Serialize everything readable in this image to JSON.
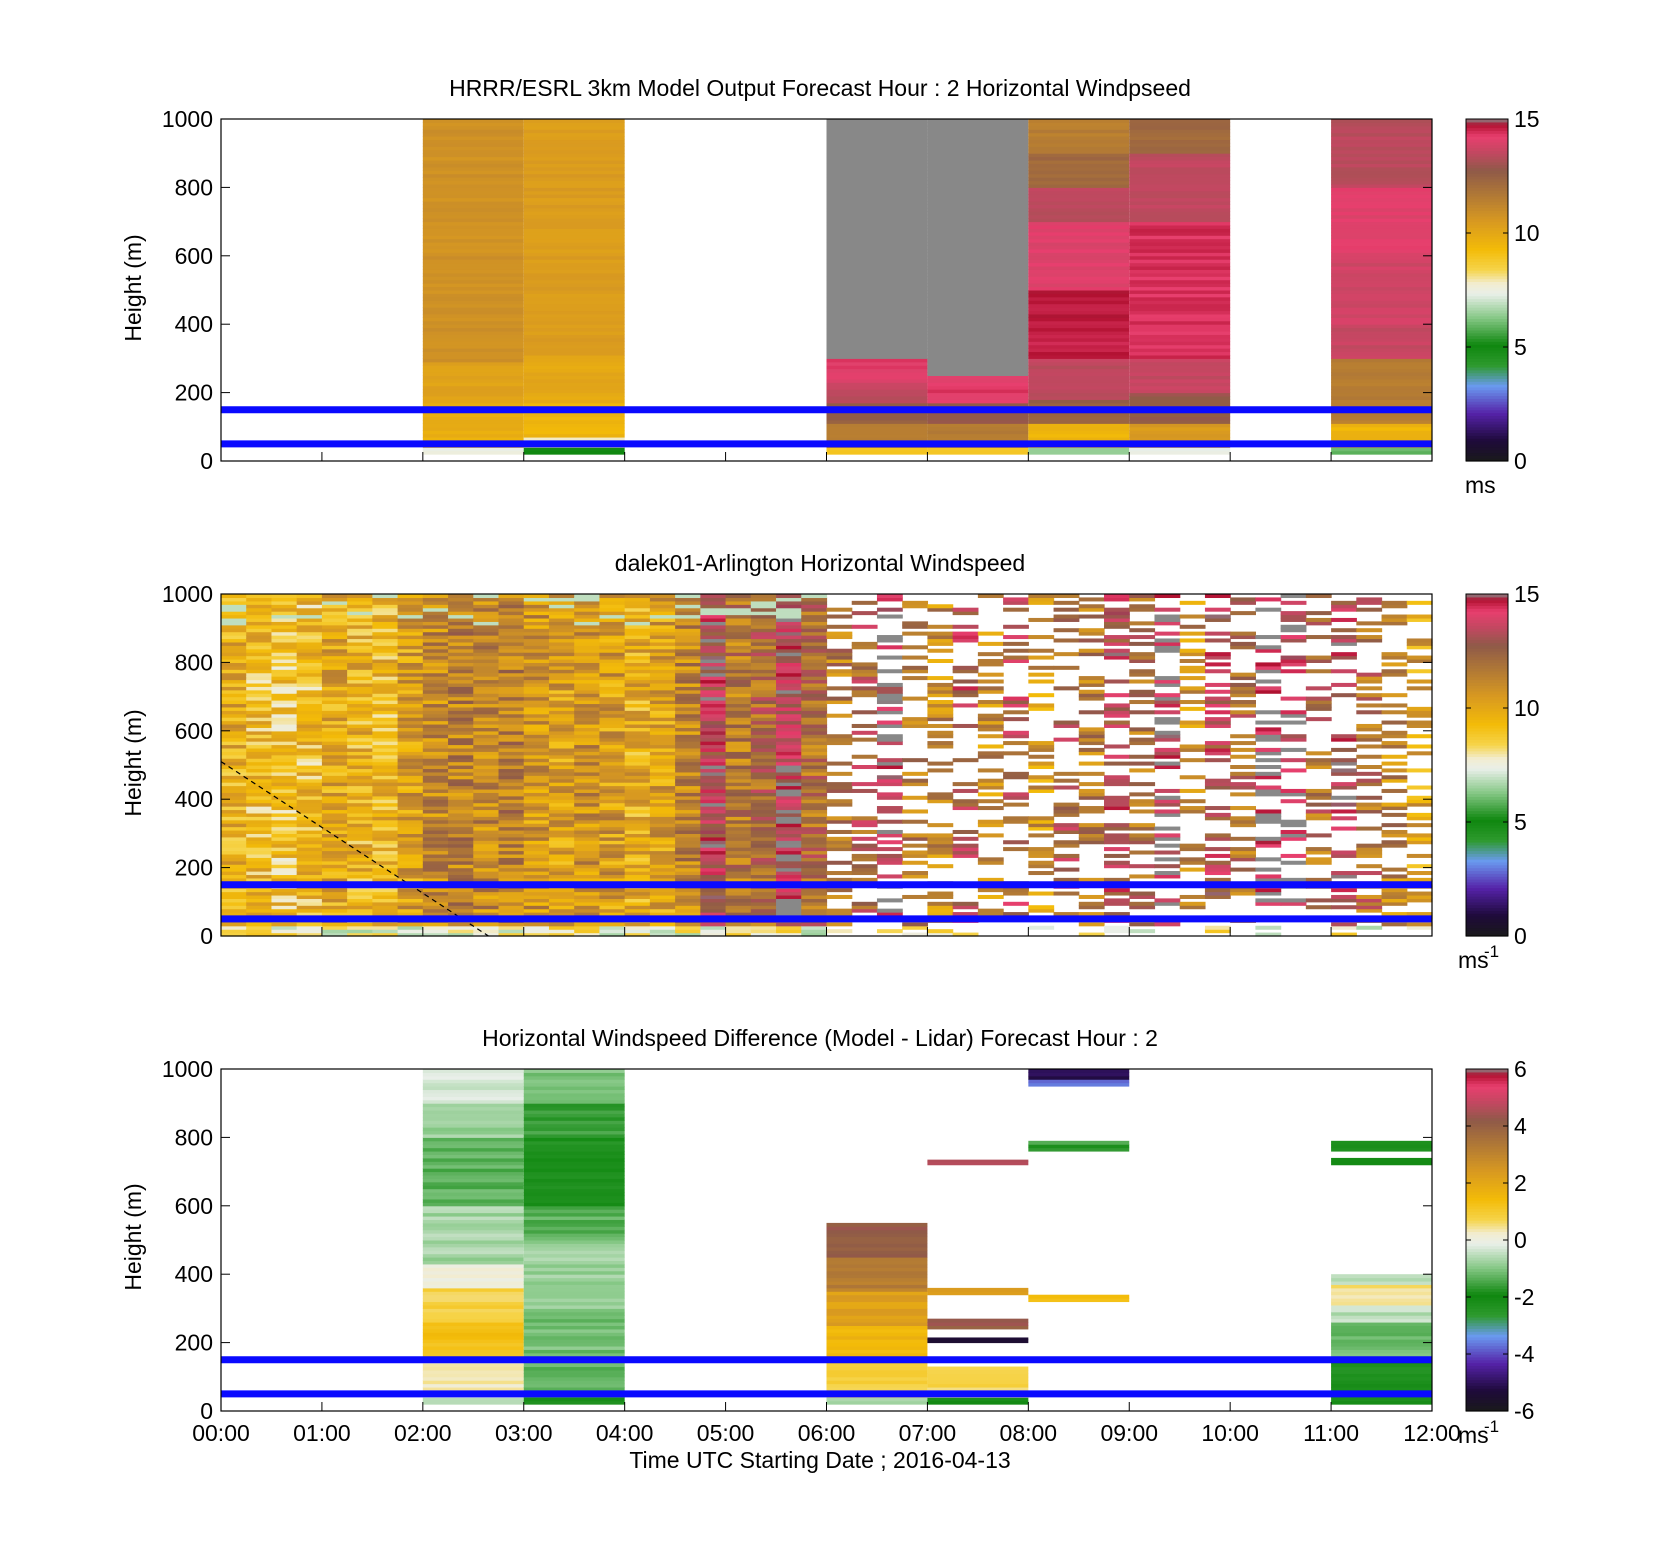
{
  "chart_data": [
    {
      "type": "heatmap",
      "title": "HRRR/ESRL 3km Model Output   Forecast Hour : 2 Horizontal Windpseed",
      "ylabel": "Height (m)",
      "ylim": [
        0,
        1000
      ],
      "yticks": [
        0,
        200,
        400,
        600,
        800,
        1000
      ],
      "xlim": [
        0,
        12
      ],
      "xticks_shown": [
        0,
        3,
        6,
        9
      ],
      "colorbar": {
        "min": 0,
        "max": 15,
        "ticks": [
          "0",
          "5",
          "10",
          "15"
        ],
        "unit": "ms",
        "unit_sup": ""
      },
      "reference_lines_m": [
        50,
        150
      ],
      "columns": [
        {
          "t0": 2,
          "t1": 3,
          "cells": [
            [
              20,
              40,
              7.5
            ],
            [
              40,
              70,
              9.5
            ],
            [
              70,
              170,
              9.8
            ],
            [
              170,
              290,
              10.2
            ],
            [
              290,
              1000,
              10.8
            ]
          ]
        },
        {
          "t0": 3,
          "t1": 4,
          "cells": [
            [
              20,
              40,
              5
            ],
            [
              40,
              70,
              8
            ],
            [
              70,
              170,
              9.5
            ],
            [
              170,
              310,
              10
            ],
            [
              310,
              1000,
              10.4
            ]
          ]
        },
        {
          "t0": 6,
          "t1": 7,
          "cells": [
            [
              20,
              40,
              9
            ],
            [
              40,
              110,
              11.5
            ],
            [
              110,
              170,
              12.5
            ],
            [
              170,
              230,
              13.5
            ],
            [
              230,
              300,
              14.2
            ],
            [
              300,
              1000,
              15.5
            ]
          ]
        },
        {
          "t0": 7,
          "t1": 8,
          "cells": [
            [
              20,
              40,
              9
            ],
            [
              40,
              110,
              11.5
            ],
            [
              110,
              170,
              12.8
            ],
            [
              170,
              250,
              14.3
            ],
            [
              250,
              1000,
              15.5
            ]
          ]
        },
        {
          "t0": 8,
          "t1": 9,
          "cells": [
            [
              20,
              40,
              6.5
            ],
            [
              40,
              110,
              9.5
            ],
            [
              110,
              180,
              12.5
            ],
            [
              180,
              300,
              13.5
            ],
            [
              300,
              500,
              14.6
            ],
            [
              500,
              700,
              14.1
            ],
            [
              700,
              800,
              13.4
            ],
            [
              800,
              900,
              12.2
            ],
            [
              900,
              1000,
              11.5
            ]
          ]
        },
        {
          "t0": 9,
          "t1": 10,
          "cells": [
            [
              20,
              40,
              7.5
            ],
            [
              40,
              110,
              10.5
            ],
            [
              110,
              200,
              12.8
            ],
            [
              200,
              300,
              13.6
            ],
            [
              300,
              700,
              14.4
            ],
            [
              700,
              900,
              13.5
            ],
            [
              900,
              1000,
              12.2
            ]
          ]
        },
        {
          "t0": 11,
          "t1": 12,
          "cells": [
            [
              20,
              40,
              6
            ],
            [
              40,
              110,
              9.5
            ],
            [
              110,
              300,
              11.5
            ],
            [
              300,
              400,
              13.6
            ],
            [
              400,
              600,
              13.8
            ],
            [
              600,
              800,
              14.1
            ],
            [
              800,
              1000,
              13.4
            ]
          ]
        }
      ]
    },
    {
      "type": "heatmap",
      "title": "dalek01-Arlington  Horizontal Windspeed",
      "ylabel": "Height (m)",
      "ylim": [
        0,
        1000
      ],
      "yticks": [
        0,
        200,
        400,
        600,
        800,
        1000
      ],
      "xlim": [
        0,
        12
      ],
      "xticks_shown": [
        0,
        3,
        6,
        9
      ],
      "colorbar": {
        "min": 0,
        "max": 15,
        "ticks": [
          "0",
          "5",
          "10",
          "15"
        ],
        "unit": "ms",
        "unit_sup": "-1"
      },
      "reference_lines_m": [
        50,
        150
      ],
      "dashed_line": {
        "x": [
          0,
          2.65
        ],
        "y": [
          510,
          0
        ]
      },
      "columns": [
        {
          "t0": 0.0,
          "t1": 0.25,
          "base": 9.8
        },
        {
          "t0": 0.25,
          "t1": 0.5,
          "base": 9.3
        },
        {
          "t0": 0.5,
          "t1": 0.75,
          "base": 9.0
        },
        {
          "t0": 0.75,
          "t1": 1.0,
          "base": 9.2
        },
        {
          "t0": 1.0,
          "t1": 1.25,
          "base": 10.0
        },
        {
          "t0": 1.25,
          "t1": 1.5,
          "base": 9.6
        },
        {
          "t0": 1.5,
          "t1": 1.75,
          "base": 9.4
        },
        {
          "t0": 1.75,
          "t1": 2.0,
          "base": 10.3
        },
        {
          "t0": 2.0,
          "t1": 2.25,
          "base": 11.0
        },
        {
          "t0": 2.25,
          "t1": 2.5,
          "base": 11.3
        },
        {
          "t0": 2.5,
          "t1": 2.75,
          "base": 11.0
        },
        {
          "t0": 2.75,
          "t1": 3.0,
          "base": 11.4
        },
        {
          "t0": 3.0,
          "t1": 3.25,
          "base": 10.6
        },
        {
          "t0": 3.25,
          "t1": 3.5,
          "base": 10.2
        },
        {
          "t0": 3.5,
          "t1": 3.75,
          "base": 10.8
        },
        {
          "t0": 3.75,
          "t1": 4.0,
          "base": 10.4
        },
        {
          "t0": 4.0,
          "t1": 4.25,
          "base": 9.8
        },
        {
          "t0": 4.25,
          "t1": 4.5,
          "base": 10.3
        },
        {
          "t0": 4.5,
          "t1": 4.75,
          "base": 11.2
        },
        {
          "t0": 4.75,
          "t1": 5.0,
          "base": 13.8
        },
        {
          "t0": 5.0,
          "t1": 5.25,
          "base": 11.6
        },
        {
          "t0": 5.25,
          "t1": 5.5,
          "base": 12.2
        },
        {
          "t0": 5.5,
          "t1": 5.75,
          "base": 14.2
        },
        {
          "t0": 5.75,
          "t1": 6.0,
          "base": 12.0
        },
        {
          "t0": 6.0,
          "t1": 6.25,
          "base": 11.5
        },
        {
          "t0": 6.25,
          "t1": 6.5,
          "base": 12.5
        },
        {
          "t0": 6.5,
          "t1": 6.75,
          "base": 14.5
        },
        {
          "t0": 6.75,
          "t1": 7.0,
          "base": 11.5
        },
        {
          "t0": 7.0,
          "t1": 7.25,
          "base": 11.0
        },
        {
          "t0": 7.25,
          "t1": 7.5,
          "base": 13.5
        },
        {
          "t0": 7.5,
          "t1": 7.75,
          "base": 11.0
        },
        {
          "t0": 7.75,
          "t1": 8.0,
          "base": 13.0
        },
        {
          "t0": 8.0,
          "t1": 8.25,
          "base": 10.5
        },
        {
          "t0": 8.25,
          "t1": 8.5,
          "base": 12.5
        },
        {
          "t0": 8.5,
          "t1": 8.75,
          "base": 11.5
        },
        {
          "t0": 8.75,
          "t1": 9.0,
          "base": 13.5
        },
        {
          "t0": 9.0,
          "t1": 9.25,
          "base": 12.0
        },
        {
          "t0": 9.25,
          "t1": 9.5,
          "base": 14.5
        },
        {
          "t0": 9.5,
          "t1": 9.75,
          "base": 11.0
        },
        {
          "t0": 9.75,
          "t1": 10.0,
          "base": 13.5
        },
        {
          "t0": 10.0,
          "t1": 10.25,
          "base": 12.0
        },
        {
          "t0": 10.25,
          "t1": 10.5,
          "base": 15.5
        },
        {
          "t0": 10.5,
          "t1": 10.75,
          "base": 14.5
        },
        {
          "t0": 10.75,
          "t1": 11.0,
          "base": 12.0
        },
        {
          "t0": 11.0,
          "t1": 11.25,
          "base": 13.8
        },
        {
          "t0": 11.25,
          "t1": 11.5,
          "base": 12.0
        },
        {
          "t0": 11.5,
          "t1": 11.75,
          "base": 11.2
        },
        {
          "t0": 11.75,
          "t1": 12.0,
          "base": 10.3
        }
      ]
    },
    {
      "type": "heatmap",
      "title": "Horizontal Windspeed Difference (Model - Lidar) Forecast Hour : 2",
      "ylabel": "Height (m)",
      "xlabel": "Time UTC  Starting Date ; 2016-04-13",
      "ylim": [
        0,
        1000
      ],
      "yticks": [
        0,
        200,
        400,
        600,
        800,
        1000
      ],
      "xlim": [
        0,
        12
      ],
      "xticks": [
        "00:00",
        "01:00",
        "02:00",
        "03:00",
        "04:00",
        "05:00",
        "06:00",
        "07:00",
        "08:00",
        "09:00",
        "10:00",
        "11:00",
        "12:00"
      ],
      "colorbar": {
        "min": -6,
        "max": 6,
        "ticks": [
          "-6",
          "-4",
          "-2",
          "0",
          "2",
          "4",
          "6"
        ],
        "unit": "ms",
        "unit_sup": "-1"
      },
      "reference_lines_m": [
        50,
        150
      ],
      "columns": [
        {
          "t0": 2,
          "t1": 3,
          "cells": [
            [
              20,
              40,
              -0.6
            ],
            [
              40,
              160,
              0.3
            ],
            [
              160,
              260,
              1.3
            ],
            [
              260,
              360,
              0.8
            ],
            [
              360,
              430,
              0.2
            ],
            [
              430,
              600,
              -0.7
            ],
            [
              600,
              800,
              -1.3
            ],
            [
              800,
              900,
              -0.8
            ],
            [
              900,
              1000,
              -0.3
            ]
          ]
        },
        {
          "t0": 3,
          "t1": 4,
          "cells": [
            [
              20,
              40,
              -2.2
            ],
            [
              40,
              150,
              -1.3
            ],
            [
              150,
              300,
              -1.1
            ],
            [
              300,
              500,
              -0.8
            ],
            [
              500,
              600,
              -1.3
            ],
            [
              600,
              800,
              -2.3
            ],
            [
              800,
              900,
              -1.6
            ],
            [
              900,
              1000,
              -1.0
            ]
          ]
        },
        {
          "t0": 6,
          "t1": 7,
          "cells": [
            [
              20,
              40,
              -0.8
            ],
            [
              40,
              150,
              0.8
            ],
            [
              150,
              250,
              1.6
            ],
            [
              250,
              350,
              2.2
            ],
            [
              350,
              450,
              3.2
            ],
            [
              450,
              550,
              4.2
            ]
          ]
        },
        {
          "t0": 7,
          "t1": 8,
          "cells": [
            [
              20,
              40,
              -2.0
            ],
            [
              40,
              130,
              0.7
            ],
            [
              200,
              215,
              -5.5
            ],
            [
              240,
              270,
              4.2
            ],
            [
              340,
              360,
              2.4
            ],
            [
              720,
              735,
              4.8
            ]
          ]
        },
        {
          "t0": 8,
          "t1": 9,
          "cells": [
            [
              320,
              340,
              1.5
            ],
            [
              760,
              790,
              -1.6
            ],
            [
              950,
              970,
              -3.8
            ],
            [
              970,
              1000,
              -5.2
            ]
          ]
        },
        {
          "t0": 11,
          "t1": 12,
          "cells": [
            [
              20,
              40,
              -2.0
            ],
            [
              40,
              150,
              -2.2
            ],
            [
              150,
              260,
              -1.2
            ],
            [
              260,
              310,
              -0.5
            ],
            [
              310,
              370,
              0.5
            ],
            [
              370,
              400,
              -0.6
            ],
            [
              720,
              740,
              -2.1
            ],
            [
              760,
              790,
              -2.3
            ]
          ]
        }
      ]
    }
  ]
}
